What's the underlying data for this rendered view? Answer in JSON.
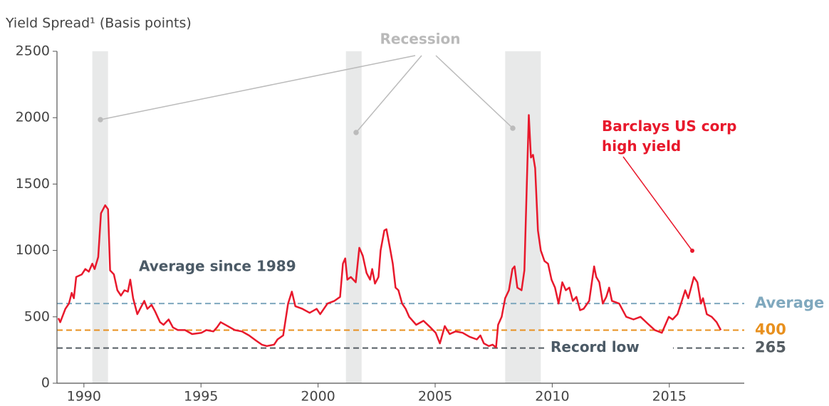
{
  "chart_data": {
    "type": "line",
    "y_axis_title": "Yield Spread¹ (Basis points)",
    "xlim": [
      1988.85,
      2018.2
    ],
    "xticks": [
      1990,
      1995,
      2000,
      2005,
      2010,
      2015
    ],
    "ylim": [
      0,
      2500
    ],
    "yticks": [
      0,
      500,
      1000,
      1500,
      2000,
      2500
    ],
    "x": [
      1988.91,
      1988.99,
      1989.21,
      1989.36,
      1989.48,
      1989.57,
      1989.67,
      1989.91,
      1990.06,
      1990.21,
      1990.36,
      1990.46,
      1990.61,
      1990.73,
      1990.91,
      1991.03,
      1991.12,
      1991.28,
      1991.43,
      1991.58,
      1991.73,
      1991.88,
      1991.98,
      1992.1,
      1992.28,
      1992.4,
      1992.58,
      1992.71,
      1992.89,
      1993.04,
      1993.25,
      1993.4,
      1993.62,
      1993.8,
      1994.01,
      1994.32,
      1994.62,
      1995.02,
      1995.23,
      1995.53,
      1995.68,
      1995.84,
      1996.14,
      1996.44,
      1996.75,
      1997.05,
      1997.36,
      1997.6,
      1997.81,
      1998.12,
      1998.27,
      1998.51,
      1998.72,
      1998.88,
      1999.03,
      1999.33,
      1999.64,
      1999.94,
      2000.09,
      2000.4,
      2000.7,
      2000.94,
      2001.06,
      2001.16,
      2001.25,
      2001.4,
      2001.61,
      2001.76,
      2001.91,
      2002.07,
      2002.22,
      2002.31,
      2002.43,
      2002.58,
      2002.67,
      2002.83,
      2002.92,
      2003.07,
      2003.19,
      2003.31,
      2003.43,
      2003.59,
      2003.74,
      2003.89,
      2004.19,
      2004.5,
      2004.8,
      2005.02,
      2005.2,
      2005.41,
      2005.62,
      2005.87,
      2006.17,
      2006.47,
      2006.78,
      2006.93,
      2007.08,
      2007.29,
      2007.45,
      2007.6,
      2007.69,
      2007.84,
      2007.99,
      2008.15,
      2008.3,
      2008.39,
      2008.51,
      2008.69,
      2008.81,
      2008.94,
      2009.0,
      2009.09,
      2009.18,
      2009.27,
      2009.39,
      2009.51,
      2009.67,
      2009.82,
      2009.97,
      2010.12,
      2010.27,
      2010.43,
      2010.58,
      2010.73,
      2010.88,
      2011.03,
      2011.19,
      2011.34,
      2011.58,
      2011.79,
      2011.88,
      2012.01,
      2012.16,
      2012.31,
      2012.43,
      2012.55,
      2012.86,
      2013.16,
      2013.47,
      2013.77,
      2014.07,
      2014.38,
      2014.68,
      2014.83,
      2014.98,
      2015.14,
      2015.35,
      2015.5,
      2015.68,
      2015.81,
      2016.05,
      2016.2,
      2016.35,
      2016.44,
      2016.6,
      2016.81,
      2017.02,
      2017.2
    ],
    "series": [
      {
        "name": "Barclays US corp high yield",
        "color": "#e8192c",
        "values": [
          490,
          460,
          560,
          600,
          680,
          640,
          800,
          820,
          860,
          840,
          900,
          860,
          950,
          1280,
          1340,
          1310,
          850,
          820,
          700,
          660,
          700,
          690,
          780,
          640,
          520,
          560,
          620,
          560,
          590,
          540,
          460,
          440,
          480,
          420,
          400,
          400,
          370,
          380,
          400,
          390,
          420,
          460,
          430,
          400,
          390,
          360,
          320,
          290,
          280,
          290,
          330,
          360,
          600,
          690,
          580,
          560,
          530,
          560,
          520,
          600,
          620,
          650,
          900,
          940,
          780,
          800,
          760,
          1020,
          960,
          830,
          780,
          860,
          750,
          800,
          1000,
          1150,
          1160,
          1020,
          900,
          720,
          700,
          600,
          560,
          500,
          440,
          470,
          420,
          380,
          300,
          430,
          370,
          390,
          380,
          350,
          330,
          360,
          300,
          280,
          290,
          270,
          440,
          500,
          640,
          700,
          860,
          880,
          720,
          700,
          850,
          1650,
          2020,
          1700,
          1720,
          1620,
          1150,
          1000,
          920,
          900,
          780,
          720,
          600,
          760,
          700,
          720,
          620,
          650,
          550,
          560,
          620,
          880,
          800,
          760,
          600,
          650,
          720,
          620,
          600,
          500,
          480,
          500,
          450,
          400,
          380,
          440,
          500,
          480,
          520,
          600,
          700,
          640,
          800,
          760,
          600,
          640,
          520,
          500,
          460,
          400
        ]
      }
    ],
    "recession_label": "Recession",
    "recessions": [
      [
        1990.36,
        1991.03
      ],
      [
        2001.19,
        2001.86
      ],
      [
        2007.99,
        2009.51
      ]
    ],
    "reference_lines": [
      {
        "name": "Average",
        "value": 600,
        "color": "#7fa8be"
      },
      {
        "value": 400,
        "color": "#e8901e"
      },
      {
        "value": 265,
        "color": "#555d63"
      }
    ],
    "annotations": [
      "Average since 1989",
      "Record low"
    ]
  }
}
